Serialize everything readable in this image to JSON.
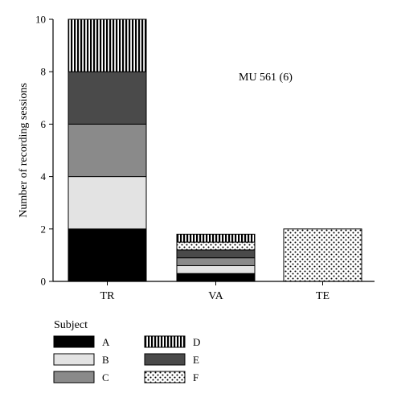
{
  "chart_data": {
    "type": "bar",
    "stacked": true,
    "categories": [
      "TR",
      "VA",
      "TE"
    ],
    "ylabel": "Number of recording sessions",
    "ylim": [
      0,
      10
    ],
    "yticks": [
      "0",
      "2",
      "4",
      "6",
      "8",
      "10"
    ],
    "annotation": "MU 561 (6)",
    "series": [
      {
        "name": "A",
        "values": [
          2,
          0.3,
          0
        ],
        "fill": "#000000"
      },
      {
        "name": "B",
        "values": [
          2,
          0.3,
          0
        ],
        "fill": "#e3e3e3"
      },
      {
        "name": "C",
        "values": [
          2,
          0.3,
          0
        ],
        "fill": "#8a8a8a"
      },
      {
        "name": "E",
        "values": [
          2,
          0.3,
          0
        ],
        "fill": "#4a4a4a"
      },
      {
        "name": "F",
        "values": [
          0,
          0.3,
          2
        ],
        "fill": "pattern-dots"
      },
      {
        "name": "D",
        "values": [
          2,
          0.3,
          0
        ],
        "fill": "pattern-vstripes"
      }
    ],
    "legend": {
      "title": "Subject",
      "items": [
        {
          "label": "A",
          "fill": "#000000"
        },
        {
          "label": "D",
          "fill": "pattern-vstripes"
        },
        {
          "label": "B",
          "fill": "#e3e3e3"
        },
        {
          "label": "E",
          "fill": "#4a4a4a"
        },
        {
          "label": "C",
          "fill": "#8a8a8a"
        },
        {
          "label": "F",
          "fill": "pattern-dots"
        }
      ]
    },
    "grid": false
  }
}
